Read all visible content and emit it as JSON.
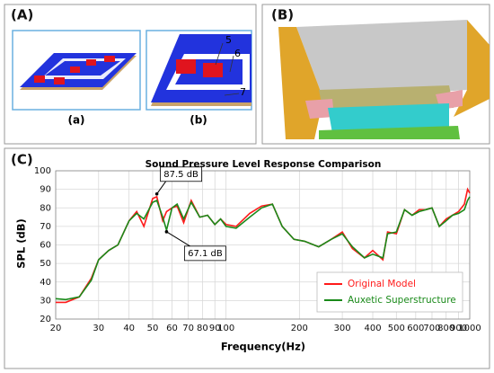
{
  "panels": {
    "a": {
      "label": "(A)",
      "sub_labels": [
        "(a)",
        "(b)"
      ],
      "callouts": [
        "5",
        "6",
        "7"
      ]
    },
    "b": {
      "label": "(B)"
    },
    "c": {
      "label": "(C)"
    }
  },
  "chart_data": {
    "type": "line",
    "title": "Sound Pressure Level Response Comparison",
    "x_label": "Frequency(Hz)",
    "y_label": "SPL (dB)",
    "x": [
      20,
      22,
      25,
      28,
      30,
      33,
      36,
      40,
      43,
      46,
      50,
      52,
      55,
      57,
      60,
      63,
      67,
      72,
      78,
      84,
      90,
      95,
      100,
      110,
      125,
      140,
      155,
      170,
      190,
      210,
      240,
      270,
      300,
      330,
      370,
      400,
      440,
      460,
      500,
      540,
      580,
      620,
      660,
      700,
      750,
      800,
      850,
      900,
      950,
      980,
      1000
    ],
    "series": [
      {
        "name": "Original Model",
        "color": "#ff1a1a",
        "values": [
          29,
          29,
          32,
          42,
          52,
          57,
          60,
          73,
          78,
          70,
          85,
          86,
          73,
          78,
          80,
          81,
          72,
          84,
          75,
          76,
          71,
          74,
          71,
          70,
          77,
          81,
          82,
          70,
          63,
          62,
          59,
          63,
          67,
          58,
          53,
          57,
          52,
          67,
          66,
          79,
          76,
          79,
          79,
          80,
          70,
          74,
          76,
          78,
          82,
          90,
          88
        ]
      },
      {
        "name": "Auxetic Superstructure",
        "color": "#1a8a1a",
        "values": [
          31,
          30.5,
          32,
          41,
          52,
          57,
          60,
          73,
          77,
          74,
          83,
          84,
          75,
          68,
          80,
          82,
          74,
          83,
          75,
          76,
          71,
          74,
          70,
          69,
          75,
          80,
          82,
          70,
          63,
          62,
          59,
          63,
          66,
          59,
          53,
          55,
          53,
          66,
          67,
          79,
          76,
          78,
          79,
          80,
          70,
          73,
          76,
          77,
          79,
          84,
          86
        ]
      }
    ],
    "xlim": [
      20,
      1000
    ],
    "ylim": [
      20,
      100
    ],
    "log_x": true,
    "grid": true,
    "xticks": [
      20,
      30,
      40,
      50,
      60,
      70,
      80,
      90,
      100,
      200,
      300,
      400,
      500,
      600,
      700,
      800,
      900,
      1000
    ],
    "yticks": [
      20,
      30,
      40,
      50,
      60,
      70,
      80,
      90,
      100
    ],
    "legend_position": "lower right",
    "annotations": [
      {
        "text": "87.5 dB",
        "x": 52,
        "y": 87.5
      },
      {
        "text": "67.1 dB",
        "x": 57,
        "y": 67.1
      }
    ]
  }
}
